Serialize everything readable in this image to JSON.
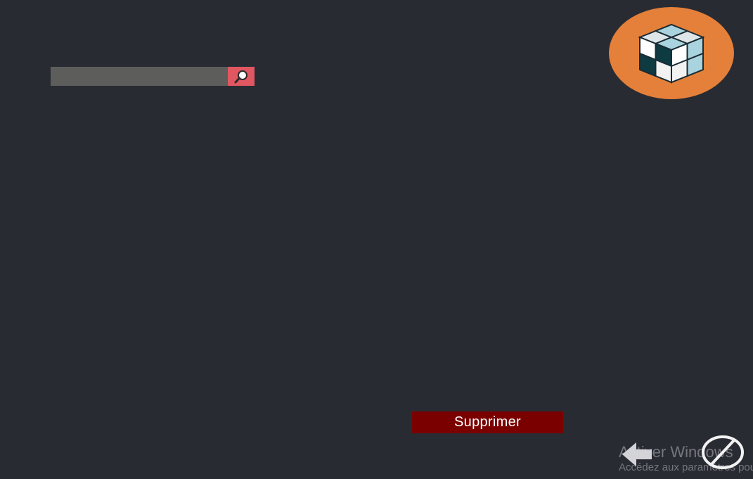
{
  "window": {
    "background_color": "#292b33"
  },
  "search": {
    "placeholder": "",
    "value": "",
    "icon": "search-icon",
    "button_color": "#e05762"
  },
  "logo": {
    "icon": "cube-icon",
    "background_color": "#e5803a"
  },
  "actions": {
    "delete_label": "Supprimer",
    "delete_color": "#7a0000",
    "back_icon": "arrow-left-icon",
    "cancel_icon": "cancel-icon"
  },
  "watermark": {
    "title": "Activer Windows",
    "subtitle": "Accédez aux paramètres pour activer Windows."
  }
}
